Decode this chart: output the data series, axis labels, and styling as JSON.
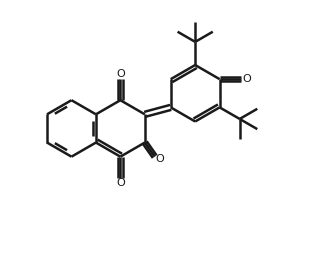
{
  "bg_color": "#ffffff",
  "line_color": "#1a1a1a",
  "line_width": 1.8,
  "figsize": [
    3.18,
    2.71
  ],
  "dpi": 100,
  "xlim": [
    -0.3,
    9.5
  ],
  "ylim": [
    -0.5,
    9.0
  ]
}
